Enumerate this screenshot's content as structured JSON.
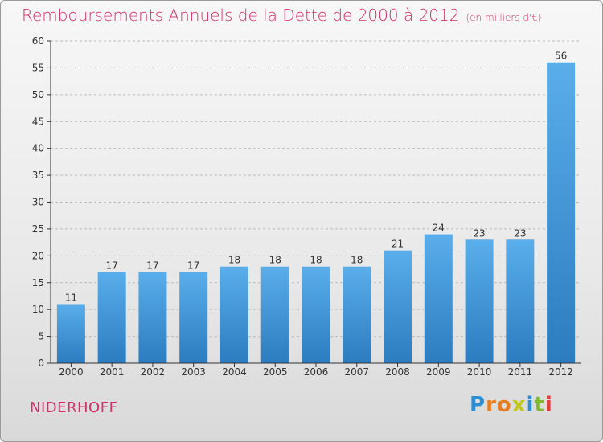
{
  "title": "Remboursements Annuels de la Dette de 2000 à 2012",
  "unit": "(en milliers d'€)",
  "commune": "NIDERHOFF",
  "logo": {
    "letters": [
      "P",
      "r",
      "o",
      "x",
      "i",
      "t",
      "i"
    ],
    "colors": [
      "#2b8fd6",
      "#e87d1e",
      "#e87d1e",
      "#c0c81e",
      "#2b8fd6",
      "#7fb82a",
      "#e33b3b"
    ]
  },
  "colors": {
    "bar_light": "#5aaeea",
    "bar_dark": "#2b7cc0",
    "accent": "#d0306c",
    "axis": "#333333",
    "grid": "#bbbbbb"
  },
  "chart_data": {
    "type": "bar",
    "categories": [
      "2000",
      "2001",
      "2002",
      "2003",
      "2004",
      "2005",
      "2006",
      "2007",
      "2008",
      "2009",
      "2010",
      "2011",
      "2012"
    ],
    "values": [
      11,
      17,
      17,
      17,
      18,
      18,
      18,
      18,
      21,
      24,
      23,
      23,
      56
    ],
    "ylim": [
      0,
      60
    ],
    "yticks": [
      0,
      5,
      10,
      15,
      20,
      25,
      30,
      35,
      40,
      45,
      50,
      55,
      60
    ],
    "grid": true
  }
}
